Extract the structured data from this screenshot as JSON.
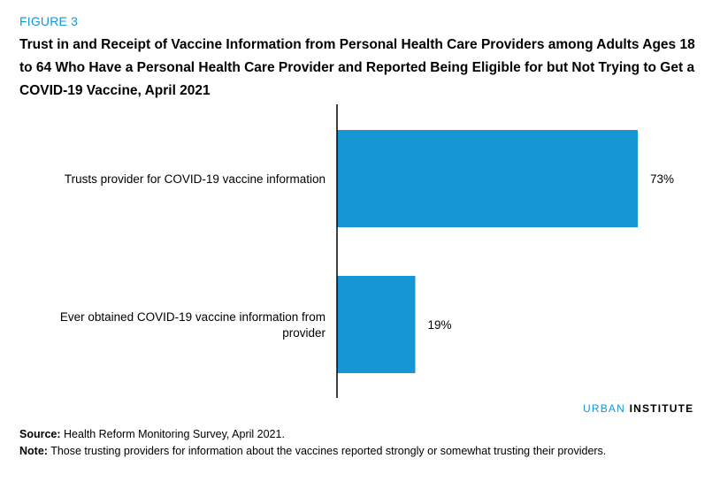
{
  "figure": {
    "label": "FIGURE 3",
    "title": "Trust in and Receipt of Vaccine Information from Personal Health Care Providers among Adults Ages 18 to 64 Who Have a Personal Health Care Provider and Reported Being Eligible for but Not Trying to Get a COVID-19 Vaccine, April 2021"
  },
  "chart_data": {
    "type": "bar",
    "orientation": "horizontal",
    "categories": [
      "Trusts provider for COVID-19 vaccine information",
      "Ever obtained COVID-19 vaccine information from provider"
    ],
    "category_lines": [
      [
        "Trusts provider for COVID-19 vaccine information"
      ],
      [
        "Ever obtained COVID-19 vaccine information from",
        "provider"
      ]
    ],
    "values": [
      73,
      19
    ],
    "value_labels": [
      "73%",
      "19%"
    ],
    "xlim": [
      0,
      73
    ],
    "grid": false,
    "bar_color": "#1696d2"
  },
  "brand": {
    "part1": "URBAN",
    "part2": "INSTITUTE"
  },
  "footnotes": {
    "source_key": "Source:",
    "source_text": "Health Reform Monitoring Survey, April 2021.",
    "note_key": "Note:",
    "note_text": "Those trusting providers for information about the vaccines reported strongly or somewhat trusting their providers."
  },
  "colors": {
    "accent": "#1696d2",
    "text": "#000000"
  }
}
